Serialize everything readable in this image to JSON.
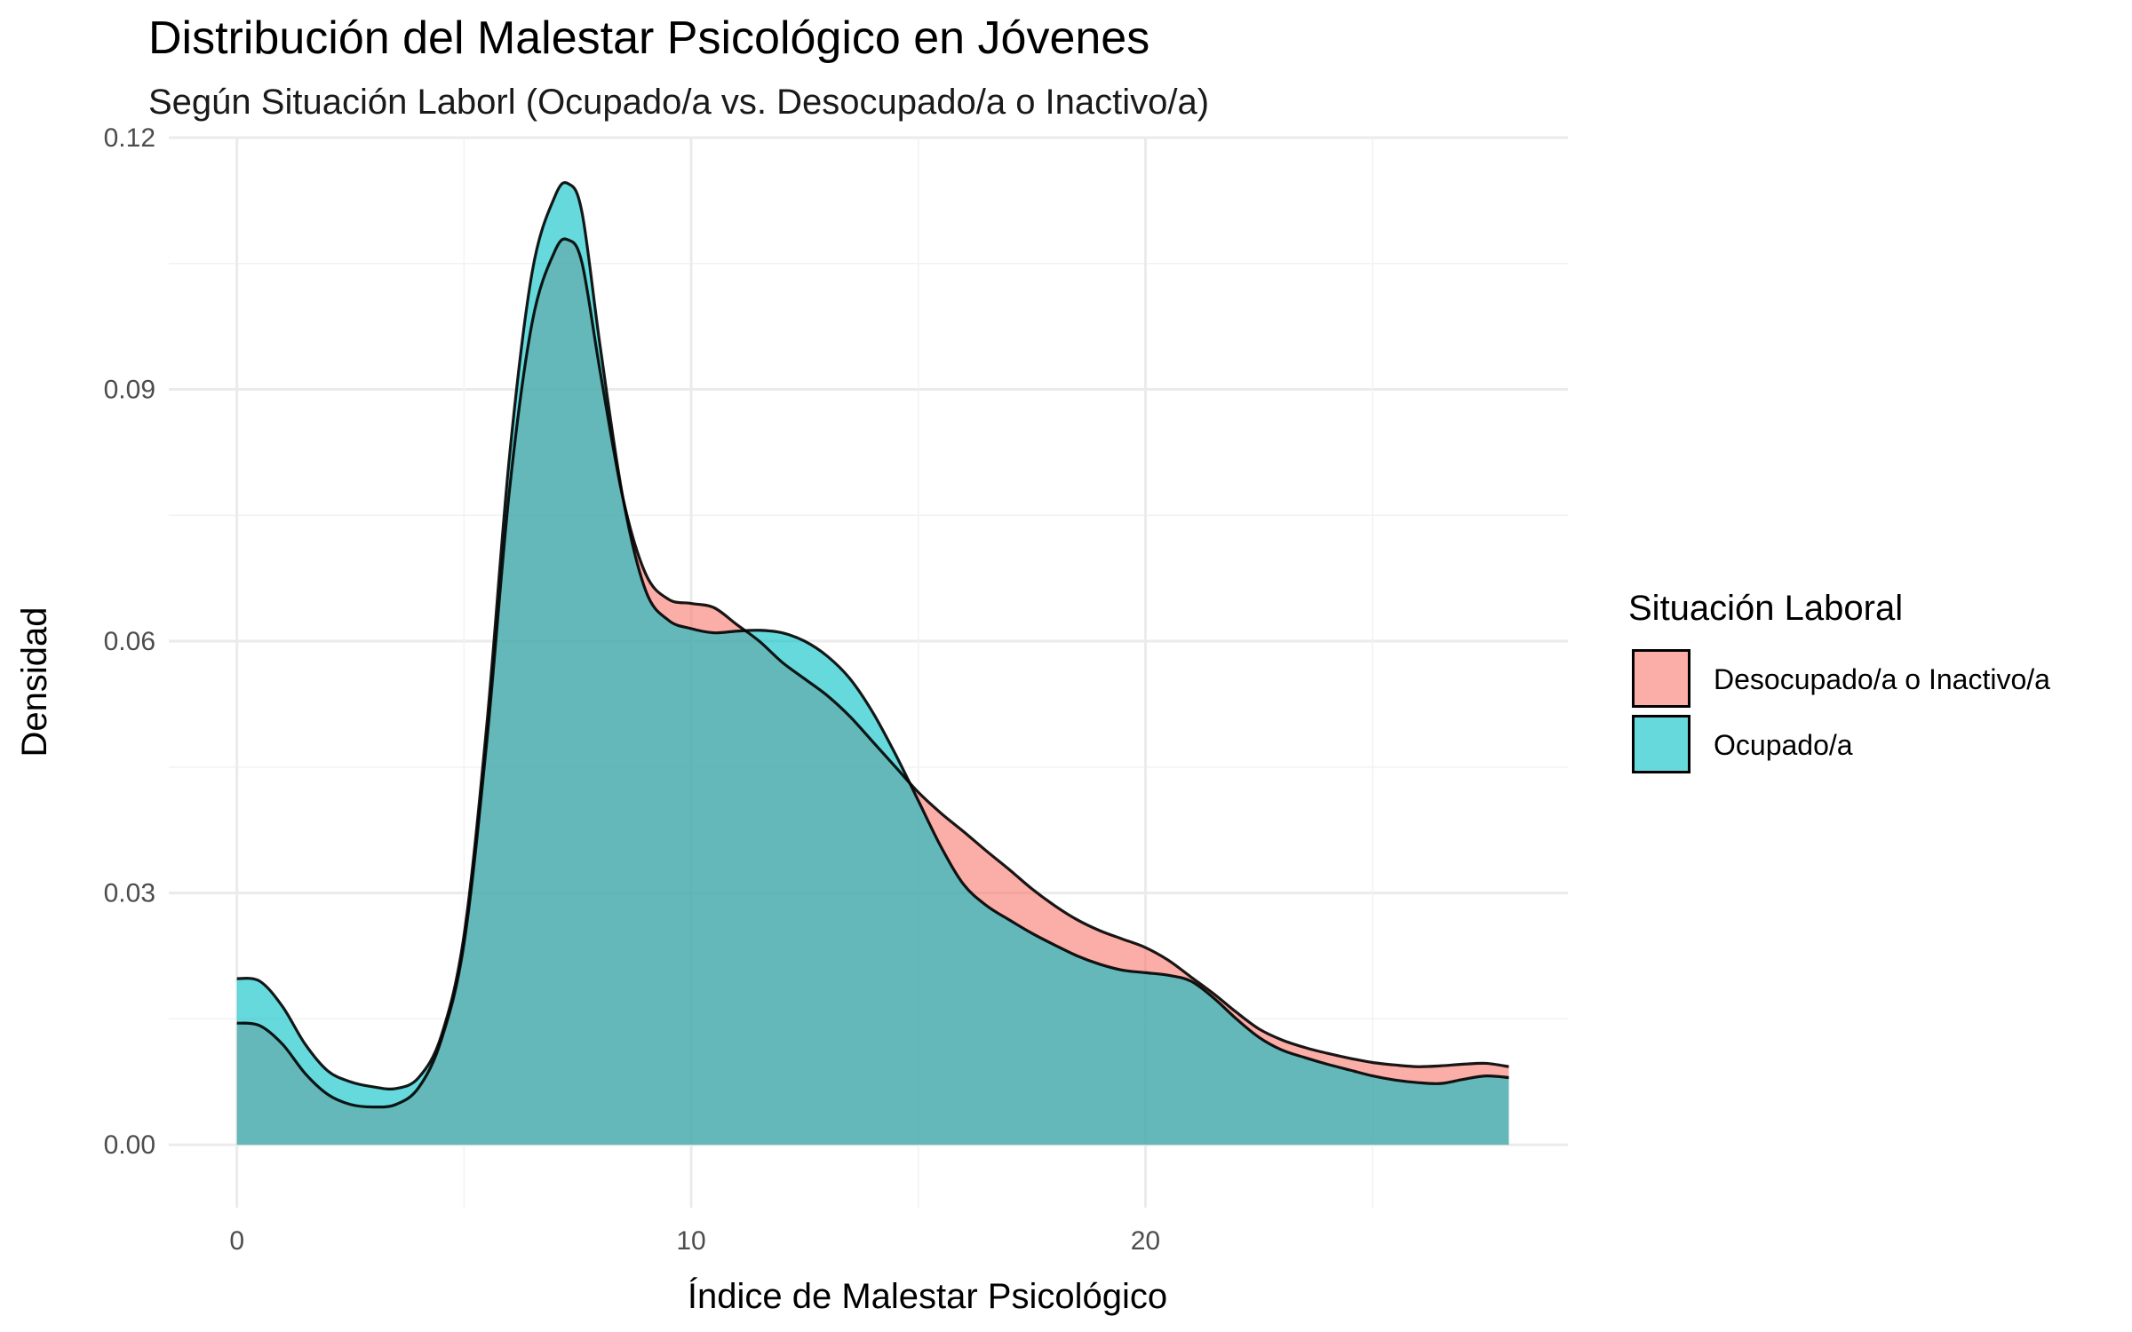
{
  "chart_data": {
    "type": "area",
    "title": "Distribución del Malestar Psicológico en Jóvenes",
    "subtitle": "Según Situación Laborl (Ocupado/a vs. Desocupado/a o Inactivo/a)",
    "xlabel": "Índice de Malestar Psicológico",
    "ylabel": "Densidad",
    "xlim": [
      -1.5,
      29.3
    ],
    "ylim": [
      -0.0075,
      0.12
    ],
    "x_ticks": [
      0,
      10,
      20
    ],
    "x_tick_labels": [
      "0",
      "10",
      "20"
    ],
    "y_ticks": [
      0,
      0.03,
      0.06,
      0.09,
      0.12
    ],
    "y_tick_labels": [
      "0.00",
      "0.03",
      "0.06",
      "0.09",
      "0.12"
    ],
    "grid": true,
    "legend": {
      "title": "Situación Laboral",
      "position": "right"
    },
    "series": [
      {
        "name": "Desocupado/a o Inactivo/a",
        "color": "#F8766D",
        "x": [
          0,
          0.5,
          1,
          1.5,
          2,
          2.5,
          3,
          3.5,
          4,
          4.5,
          5,
          5.5,
          6,
          6.5,
          7,
          7.3,
          7.6,
          8,
          8.5,
          9,
          9.5,
          10,
          10.5,
          11,
          11.5,
          12,
          12.5,
          13,
          13.5,
          14,
          14.5,
          15,
          15.5,
          16,
          16.5,
          17,
          17.5,
          18,
          18.5,
          19,
          19.5,
          20,
          20.5,
          21,
          21.5,
          22,
          22.5,
          23,
          23.5,
          24,
          24.5,
          25,
          25.5,
          26,
          26.5,
          27,
          27.5,
          28
        ],
        "y": [
          0.0145,
          0.0142,
          0.012,
          0.0085,
          0.006,
          0.0048,
          0.0045,
          0.0048,
          0.0068,
          0.0125,
          0.024,
          0.048,
          0.078,
          0.098,
          0.1065,
          0.1078,
          0.105,
          0.092,
          0.077,
          0.068,
          0.065,
          0.0645,
          0.064,
          0.062,
          0.06,
          0.0575,
          0.0555,
          0.0535,
          0.051,
          0.048,
          0.045,
          0.042,
          0.0395,
          0.0373,
          0.035,
          0.0328,
          0.0305,
          0.0285,
          0.0268,
          0.0255,
          0.0245,
          0.0235,
          0.022,
          0.02,
          0.018,
          0.0158,
          0.0138,
          0.0125,
          0.0116,
          0.0109,
          0.0103,
          0.0098,
          0.0095,
          0.0093,
          0.0094,
          0.0096,
          0.0097,
          0.0093
        ]
      },
      {
        "name": "Ocupado/a",
        "color": "#00BFC4",
        "x": [
          0,
          0.5,
          1,
          1.5,
          2,
          2.5,
          3,
          3.5,
          4,
          4.5,
          5,
          5.5,
          6,
          6.5,
          7,
          7.3,
          7.6,
          8,
          8.5,
          9,
          9.5,
          10,
          10.5,
          11,
          11.5,
          12,
          12.5,
          13,
          13.5,
          14,
          14.5,
          15,
          15.5,
          16,
          16.5,
          17,
          17.5,
          18,
          18.5,
          19,
          19.5,
          20,
          20.5,
          21,
          21.5,
          22,
          22.5,
          23,
          23.5,
          24,
          24.5,
          25,
          25.5,
          26,
          26.5,
          27,
          27.5,
          28
        ],
        "y": [
          0.0198,
          0.0195,
          0.0165,
          0.012,
          0.0088,
          0.0075,
          0.0069,
          0.0067,
          0.008,
          0.013,
          0.025,
          0.05,
          0.082,
          0.104,
          0.113,
          0.1145,
          0.111,
          0.095,
          0.077,
          0.066,
          0.0625,
          0.0615,
          0.061,
          0.0612,
          0.0613,
          0.061,
          0.06,
          0.0582,
          0.0555,
          0.0515,
          0.0465,
          0.041,
          0.0355,
          0.031,
          0.0285,
          0.0268,
          0.0252,
          0.0238,
          0.0225,
          0.0215,
          0.0208,
          0.0205,
          0.0202,
          0.0195,
          0.0175,
          0.015,
          0.0128,
          0.0113,
          0.0104,
          0.0096,
          0.0089,
          0.0082,
          0.0077,
          0.0074,
          0.0073,
          0.0078,
          0.0082,
          0.008
        ]
      }
    ]
  }
}
